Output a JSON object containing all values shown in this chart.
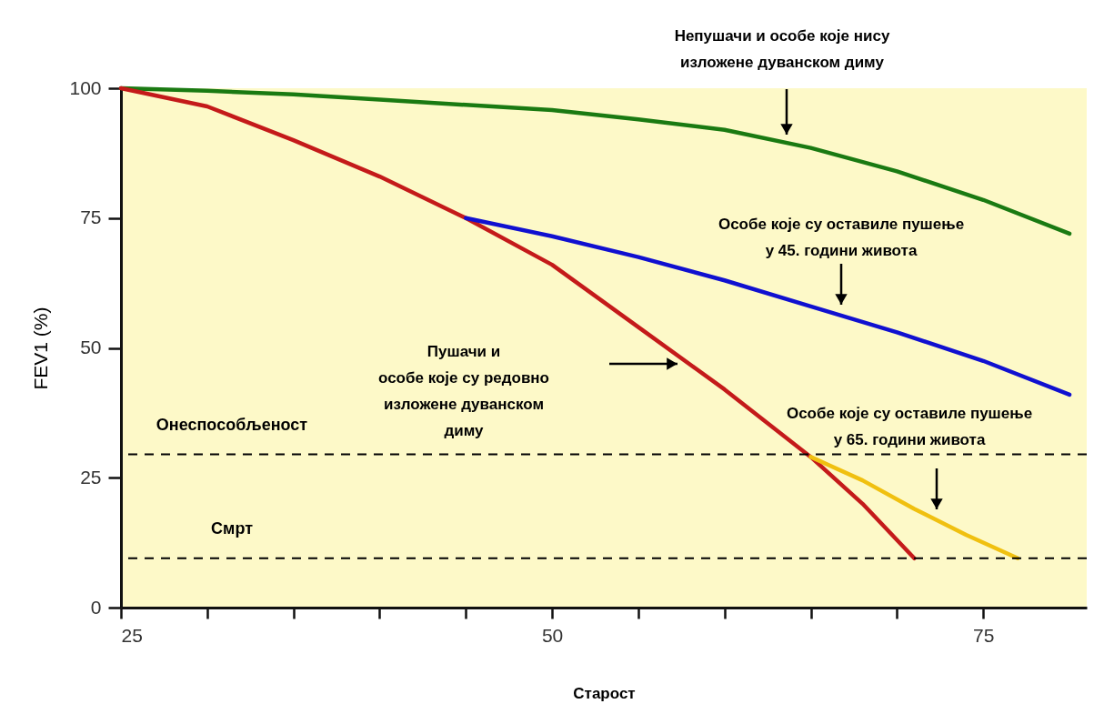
{
  "chart_data": {
    "type": "line",
    "xlabel": "Старост",
    "ylabel": "FEV1 (%)",
    "xlim": [
      25,
      81
    ],
    "xticks": [
      25,
      {
        "value": 30,
        "label": null
      },
      {
        "value": 35,
        "label": null
      },
      {
        "value": 40,
        "label": null
      },
      {
        "value": 45,
        "label": null
      },
      50,
      {
        "value": 55,
        "label": null
      },
      {
        "value": 60,
        "label": null
      },
      {
        "value": 65,
        "label": null
      },
      {
        "value": 70,
        "label": null
      },
      75
    ],
    "ylim": [
      0,
      100
    ],
    "yticks": [
      0,
      25,
      50,
      75,
      100
    ],
    "grid": false,
    "legend": false,
    "line_style": "solid",
    "marker": "none",
    "series": [
      {
        "color": "#1a7a12",
        "x": [
          25,
          30,
          35,
          40,
          45,
          50,
          55,
          60,
          65,
          70,
          75,
          80
        ],
        "values": [
          100,
          99.5,
          98.8,
          97.8,
          96.8,
          95.8,
          94,
          92,
          88.5,
          84,
          78.5,
          72
        ]
      },
      {
        "color": "#c41a1a",
        "x": [
          25,
          30,
          35,
          40,
          45,
          50,
          55,
          60,
          65,
          68,
          71
        ],
        "values": [
          100,
          96.5,
          90,
          83,
          75,
          66,
          54,
          42,
          29,
          20,
          9.5
        ]
      },
      {
        "color": "#1010d0",
        "x": [
          45,
          50,
          55,
          60,
          65,
          70,
          75,
          80
        ],
        "values": [
          75,
          71.5,
          67.5,
          63,
          58,
          53,
          47.5,
          41
        ]
      },
      {
        "color": "#f0c010",
        "x": [
          65,
          68,
          71,
          74,
          77
        ],
        "values": [
          29,
          24.5,
          19,
          14,
          9.5
        ]
      }
    ],
    "ref_lines": [
      {
        "axis": "y",
        "value": 29.5,
        "label": "Онеспособљеност",
        "color": "#000000",
        "line_style": "dashed"
      },
      {
        "axis": "y",
        "value": 9.5,
        "label": "Смрт",
        "color": "#000000",
        "line_style": "dashed"
      }
    ],
    "annotations": [
      "Непушачи и особе које нису\nизложене дуванском диму",
      "Особе које су оставиле пушење\nу 45. години живота",
      "Пушачи и\nособе које су  редовно\nизложене дуванском\nдиму",
      "Особе које су оставиле пушење\nу 65. години живота"
    ]
  }
}
